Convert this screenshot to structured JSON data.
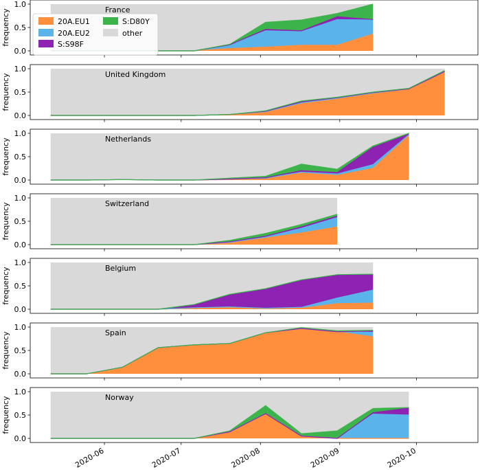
{
  "chart_data": {
    "type": "area",
    "stacked": true,
    "ylabel": "frequency",
    "ylim": [
      0,
      1
    ],
    "yticks": [
      0.0,
      0.5,
      1.0
    ],
    "xticks": [
      "2020-06",
      "2020-07",
      "2020-08",
      "2020-09",
      "2020-10"
    ],
    "xticks_date": [
      "2020-06-01",
      "2020-07-01",
      "2020-08-01",
      "2020-09-01",
      "2020-10-01"
    ],
    "xlim": [
      "2020-05-03",
      "2020-10-25"
    ],
    "colors": {
      "20A.EU1": "#ff8f3d",
      "20A.EU2": "#5ab4ea",
      "S:S98F": "#8e22b2",
      "S:D80Y": "#3cb44b",
      "other": "#d9d9d9"
    },
    "legend": {
      "location": "top-left (first panel)",
      "entries": [
        "20A.EU1",
        "20A.EU2",
        "S:S98F",
        "S:D80Y",
        "other"
      ]
    },
    "panels": [
      {
        "country": "France",
        "dates": [
          "2020-05-11",
          "2020-05-25",
          "2020-06-08",
          "2020-06-22",
          "2020-07-06",
          "2020-07-20",
          "2020-08-03",
          "2020-08-17",
          "2020-08-31",
          "2020-09-14"
        ],
        "series": [
          {
            "name": "20A.EU1",
            "values": [
              0,
              0,
              0,
              0,
              0,
              0.05,
              0.08,
              0.12,
              0.12,
              0.36
            ]
          },
          {
            "name": "20A.EU2",
            "values": [
              0,
              0,
              0,
              0,
              0,
              0.07,
              0.35,
              0.29,
              0.55,
              0.3
            ]
          },
          {
            "name": "S:S98F",
            "values": [
              0,
              0,
              0,
              0,
              0,
              0.01,
              0.03,
              0.02,
              0.06,
              0.01
            ]
          },
          {
            "name": "S:D80Y",
            "values": [
              0,
              0,
              0,
              0,
              0,
              0.01,
              0.15,
              0.23,
              0.07,
              0.33
            ]
          }
        ]
      },
      {
        "country": "United Kingdom",
        "dates": [
          "2020-05-11",
          "2020-05-25",
          "2020-06-08",
          "2020-06-22",
          "2020-07-06",
          "2020-07-20",
          "2020-08-03",
          "2020-08-17",
          "2020-08-31",
          "2020-09-14",
          "2020-09-28",
          "2020-10-12"
        ],
        "series": [
          {
            "name": "20A.EU1",
            "values": [
              0,
              0,
              0,
              0,
              0,
              0.02,
              0.07,
              0.25,
              0.35,
              0.47,
              0.56,
              0.93
            ]
          },
          {
            "name": "20A.EU2",
            "values": [
              0,
              0,
              0,
              0,
              0,
              0,
              0.01,
              0.02,
              0.02,
              0.01,
              0.01,
              0.01
            ]
          },
          {
            "name": "S:S98F",
            "values": [
              0,
              0,
              0,
              0,
              0,
              0,
              0.01,
              0.02,
              0.01,
              0.01,
              0,
              0
            ]
          },
          {
            "name": "S:D80Y",
            "values": [
              0,
              0,
              0,
              0,
              0,
              0,
              0.01,
              0.02,
              0.01,
              0.01,
              0.01,
              0.02
            ]
          }
        ]
      },
      {
        "country": "Netherlands",
        "dates": [
          "2020-05-11",
          "2020-05-25",
          "2020-06-08",
          "2020-06-22",
          "2020-07-06",
          "2020-07-20",
          "2020-08-03",
          "2020-08-17",
          "2020-08-31",
          "2020-09-14",
          "2020-09-28"
        ],
        "series": [
          {
            "name": "20A.EU1",
            "values": [
              0,
              0,
              0.01,
              0,
              0,
              0.01,
              0.03,
              0.15,
              0.1,
              0.25,
              0.95
            ]
          },
          {
            "name": "20A.EU2",
            "values": [
              0,
              0,
              0,
              0,
              0,
              0.01,
              0.01,
              0.02,
              0.03,
              0.08,
              0.02
            ]
          },
          {
            "name": "S:S98F",
            "values": [
              0,
              0,
              0,
              0,
              0,
              0,
              0.01,
              0.03,
              0.03,
              0.37,
              0.01
            ]
          },
          {
            "name": "S:D80Y",
            "values": [
              0,
              0,
              0,
              0,
              0,
              0.02,
              0.03,
              0.14,
              0.07,
              0.03,
              0.02
            ]
          }
        ]
      },
      {
        "country": "Switzerland",
        "dates": [
          "2020-05-11",
          "2020-05-25",
          "2020-06-08",
          "2020-06-22",
          "2020-07-06",
          "2020-07-20",
          "2020-08-03",
          "2020-08-17",
          "2020-08-31"
        ],
        "series": [
          {
            "name": "20A.EU1",
            "values": [
              0,
              0,
              0,
              0,
              0,
              0.04,
              0.14,
              0.25,
              0.38
            ]
          },
          {
            "name": "20A.EU2",
            "values": [
              0,
              0,
              0,
              0,
              0,
              0.01,
              0.02,
              0.1,
              0.2
            ]
          },
          {
            "name": "S:S98F",
            "values": [
              0,
              0,
              0,
              0,
              0,
              0.01,
              0.02,
              0.03,
              0.03
            ]
          },
          {
            "name": "S:D80Y",
            "values": [
              0,
              0,
              0,
              0,
              0,
              0.03,
              0.06,
              0.05,
              0.04
            ]
          }
        ]
      },
      {
        "country": "Belgium",
        "dates": [
          "2020-05-11",
          "2020-05-25",
          "2020-06-08",
          "2020-06-22",
          "2020-07-06",
          "2020-07-20",
          "2020-08-03",
          "2020-08-17",
          "2020-08-31",
          "2020-09-14"
        ],
        "series": [
          {
            "name": "20A.EU1",
            "values": [
              0,
              0,
              0,
              0,
              0.02,
              0.04,
              0.02,
              0.02,
              0.12,
              0.13
            ]
          },
          {
            "name": "20A.EU2",
            "values": [
              0,
              0,
              0,
              0,
              0.01,
              0.01,
              0,
              0.02,
              0.12,
              0.28
            ]
          },
          {
            "name": "S:S98F",
            "values": [
              0,
              0,
              0,
              0,
              0.06,
              0.26,
              0.41,
              0.58,
              0.49,
              0.33
            ]
          },
          {
            "name": "S:D80Y",
            "values": [
              0,
              0,
              0,
              0,
              0.01,
              0.01,
              0.01,
              0.01,
              0.01,
              0.01
            ]
          }
        ]
      },
      {
        "country": "Spain",
        "dates": [
          "2020-05-11",
          "2020-05-25",
          "2020-06-08",
          "2020-06-22",
          "2020-07-06",
          "2020-07-20",
          "2020-08-03",
          "2020-08-17",
          "2020-08-31",
          "2020-09-14"
        ],
        "series": [
          {
            "name": "20A.EU1",
            "values": [
              0,
              0,
              0.14,
              0.56,
              0.62,
              0.65,
              0.88,
              0.97,
              0.9,
              0.79
            ]
          },
          {
            "name": "20A.EU2",
            "values": [
              0,
              0,
              0,
              0,
              0,
              0,
              0,
              0,
              0,
              0.1
            ]
          },
          {
            "name": "S:S98F",
            "values": [
              0,
              0,
              0,
              0,
              0,
              0,
              0,
              0,
              0,
              0.03
            ]
          },
          {
            "name": "S:D80Y",
            "values": [
              0,
              0,
              0,
              0,
              0,
              0,
              0,
              0.02,
              0.02,
              0.01
            ]
          }
        ]
      },
      {
        "country": "Norway",
        "dates": [
          "2020-05-11",
          "2020-05-25",
          "2020-06-08",
          "2020-06-22",
          "2020-07-06",
          "2020-07-20",
          "2020-08-03",
          "2020-08-17",
          "2020-08-31",
          "2020-09-14",
          "2020-09-28"
        ],
        "series": [
          {
            "name": "20A.EU1",
            "values": [
              0,
              0,
              0,
              0,
              0,
              0.14,
              0.53,
              0.05,
              0,
              0,
              0
            ]
          },
          {
            "name": "20A.EU2",
            "values": [
              0,
              0,
              0,
              0,
              0,
              0,
              0,
              0,
              0,
              0.52,
              0.5
            ]
          },
          {
            "name": "S:S98F",
            "values": [
              0,
              0,
              0,
              0,
              0,
              0,
              0,
              0,
              0,
              0.03,
              0.15
            ]
          },
          {
            "name": "S:D80Y",
            "values": [
              0,
              0,
              0,
              0,
              0,
              0.02,
              0.17,
              0.05,
              0.16,
              0.09,
              0.01
            ]
          }
        ]
      }
    ]
  }
}
